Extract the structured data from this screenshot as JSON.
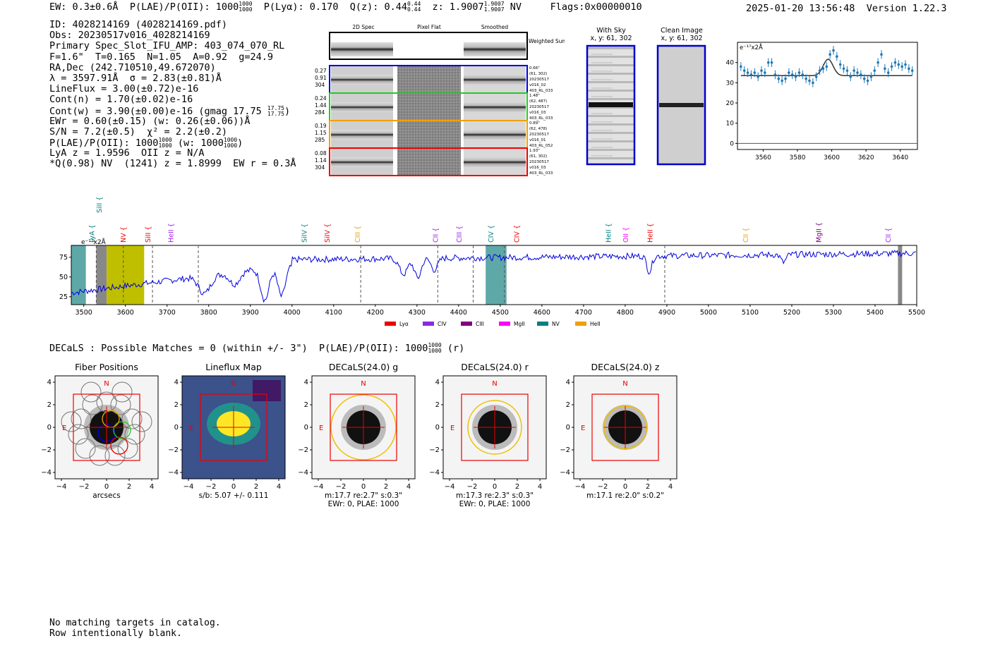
{
  "header": {
    "ew": "EW: 0.3±0.6Å",
    "plae_label": "P(LAE)/P(OII): 1000",
    "plae_sup": "1000",
    "plae_sub": "1000",
    "plya": "P(Lyα): 0.170",
    "qz_label": "Q(z): 0.44",
    "qz_sup": "0.44",
    "qz_sub": "0.44",
    "z_label": "z: 1.9007",
    "z_sup": "1.9007",
    "z_sub": "1.9007",
    "z_line": "NV",
    "flags": "Flags:0x00000010",
    "datetime": "2025-01-20 13:56:48",
    "version": "Version 1.22.3"
  },
  "info": {
    "id": "ID: 4028214169 (4028214169.pdf)",
    "obs": "Obs: 20230517v016_4028214169",
    "primary": "Primary Spec_Slot_IFU_AMP: 403_074_070_RL",
    "params": "F=1.6\"  T=0.165  N=1.05  A=0.92  g=24.9",
    "radec": "RA,Dec (242.710510,49.672070)",
    "lambda": "λ = 3597.91Å  σ = 2.83(±0.81)Å",
    "lineflux": "LineFlux = 3.00(±0.72)e-16",
    "contn": "Cont(n) = 1.70(±0.02)e-16",
    "contw": "Cont(w) = 3.90(±0.00)e-16 (gmag 17.75",
    "contw_sup": "17.75",
    "contw_sub": "17.75",
    "ewr": "EWr = 0.60(±0.15) (w: 0.26(±0.06))Å",
    "sn": "S/N = 7.2(±0.5)  χ² = 2.2(±0.2)",
    "plae": "P(LAE)/P(OII): 1000",
    "plae_sup": "1000",
    "plae_sub": "1000",
    "plae_w": "(w: 1000",
    "plae_w_sup": "1000",
    "plae_w_sub": "1000",
    "lya": "LyA z = 1.9596  OII z = N/A",
    "q": "*Q(0.98) NV  (1241) z = 1.8999  EW r = 0.3Å"
  },
  "cutouts": {
    "col_2d": "2D Spec",
    "col_flat": "Pixel Flat",
    "col_smooth": "Smoothed",
    "weighted": "Weighted Sum",
    "rows": [
      {
        "w1": "0.27",
        "w2": "0.91",
        "w3": "304",
        "info1": "0.66\"",
        "info2": "(61, 302)",
        "info3": "20230517",
        "info4": "v016_02",
        "info5": "403_RL_033",
        "color": "#0000dd"
      },
      {
        "w1": "0.24",
        "w2": "1.44",
        "w3": "284",
        "info1": "1.48\"",
        "info2": "(62, 487)",
        "info3": "20230517",
        "info4": "v016_03",
        "info5": "403_RL_033",
        "color": "#22cc22"
      },
      {
        "w1": "0.19",
        "w2": "1.15",
        "w3": "285",
        "info1": "0.89\"",
        "info2": "(62, 478)",
        "info3": "20230517",
        "info4": "v016_01",
        "info5": "403_RL_052",
        "color": "#f0a000"
      },
      {
        "w1": "0.08",
        "w2": "1.14",
        "w3": "304",
        "info1": "1.93\"",
        "info2": "(61, 302)",
        "info3": "20230517",
        "info4": "v016_03",
        "info5": "403_RL_033",
        "color": "#ee0000"
      }
    ],
    "with_sky": "With Sky",
    "with_sky_xy": "x, y: 61, 302",
    "clean": "Clean Image",
    "clean_xy": "x, y: 61, 302"
  },
  "chart_data": [
    {
      "type": "scatter",
      "title": "",
      "ylabel_text": "e⁻¹⁷x2Å",
      "xlim": [
        3545,
        3650
      ],
      "ylim": [
        -3,
        50
      ],
      "xticks": [
        3560,
        3580,
        3600,
        3620,
        3640
      ],
      "yticks": [
        0,
        10,
        20,
        30,
        40
      ],
      "x": [
        3547,
        3549,
        3551,
        3553,
        3555,
        3557,
        3559,
        3561,
        3563,
        3565,
        3567,
        3569,
        3571,
        3573,
        3575,
        3577,
        3579,
        3581,
        3583,
        3585,
        3587,
        3589,
        3591,
        3593,
        3595,
        3597,
        3599,
        3601,
        3603,
        3605,
        3607,
        3609,
        3611,
        3613,
        3615,
        3617,
        3619,
        3621,
        3623,
        3625,
        3627,
        3629,
        3631,
        3633,
        3635,
        3637,
        3639,
        3641,
        3643,
        3645,
        3647
      ],
      "y": [
        38,
        36,
        35,
        34,
        35,
        33,
        36,
        35,
        40,
        40,
        34,
        32,
        31,
        32,
        35,
        34,
        33,
        35,
        34,
        32,
        31,
        30,
        33,
        36,
        37,
        38,
        44,
        46,
        43,
        39,
        37,
        36,
        33,
        36,
        35,
        34,
        32,
        31,
        33,
        36,
        40,
        44,
        37,
        35,
        38,
        40,
        39,
        38,
        39,
        37,
        36
      ],
      "fit": {
        "amplitude": 8.2,
        "center": 3597.9,
        "sigma": 2.83,
        "baseline": 33.5
      }
    },
    {
      "type": "line",
      "ylabel_text": "e⁻¹⁷x2Å",
      "xlim": [
        3470,
        5500
      ],
      "ylim": [
        15,
        90
      ],
      "xticks": [
        3500,
        3600,
        3700,
        3800,
        3900,
        4000,
        4100,
        4200,
        4300,
        4400,
        4500,
        4600,
        4700,
        4800,
        4900,
        5000,
        5100,
        5200,
        5300,
        5400,
        5500
      ],
      "yticks": [
        25,
        50,
        75
      ],
      "lines": [
        {
          "name": "SiII",
          "wave": 3538,
          "color": "#008080"
        },
        {
          "name": "LyA",
          "wave": 3520,
          "color": "#008080"
        },
        {
          "name": "NV",
          "wave": 3595,
          "color": "#ee0000"
        },
        {
          "name": "SiII",
          "wave": 3655,
          "color": "#ee0000"
        },
        {
          "name": "HeII",
          "wave": 3710,
          "color": "#a020f0"
        },
        {
          "name": "SiIV",
          "wave": 4030,
          "color": "#008080"
        },
        {
          "name": "SiIV",
          "wave": 4085,
          "color": "#ee0000"
        },
        {
          "name": "CIII",
          "wave": 4158,
          "color": "#f0a000"
        },
        {
          "name": "CII",
          "wave": 4345,
          "color": "#a020f0"
        },
        {
          "name": "CIII",
          "wave": 4402,
          "color": "#a020f0"
        },
        {
          "name": "CIV",
          "wave": 4478,
          "color": "#008080"
        },
        {
          "name": "CIV",
          "wave": 4540,
          "color": "#ee0000"
        },
        {
          "name": "HeII",
          "wave": 4760,
          "color": "#008080"
        },
        {
          "name": "OII",
          "wave": 4802,
          "color": "#ff00ff"
        },
        {
          "name": "HeII",
          "wave": 4860,
          "color": "#ee0000"
        },
        {
          "name": "CII",
          "wave": 5090,
          "color": "#f0a000"
        },
        {
          "name": "MgII",
          "wave": 5265,
          "color": "#800080"
        },
        {
          "name": "CII",
          "wave": 5432,
          "color": "#a020f0"
        }
      ],
      "dashed_lines": [
        3530,
        3595,
        3665,
        3775,
        4165,
        4350,
        4435,
        4510,
        4895
      ],
      "legend": [
        {
          "name": "Lyα",
          "color": "#ee0000"
        },
        {
          "name": "CIV",
          "color": "#8a2be2"
        },
        {
          "name": "CIII",
          "color": "#800080"
        },
        {
          "name": "MgII",
          "color": "#ff00ff"
        },
        {
          "name": "NV",
          "color": "#008080"
        },
        {
          "name": "HeII",
          "color": "#f0a000"
        }
      ]
    }
  ],
  "decals": {
    "line": "DECaLS : Possible Matches = 0 (within +/- 3\")  P(LAE)/P(OII): 1000",
    "sup": "1000",
    "sub": "1000",
    "band": "(r)",
    "panels": [
      {
        "title": "Fiber Positions",
        "xlabel": "arcsecs",
        "sub1": "",
        "sub2": ""
      },
      {
        "title": "Lineflux Map",
        "xlabel": "s/b: 5.07 +/- 0.111",
        "sub1": "",
        "sub2": ""
      },
      {
        "title": "DECaLS(24.0) g",
        "xlabel": "m:17.7  re:2.7\"  s:0.3\"",
        "sub2": "EWr: 0, PLAE: 1000"
      },
      {
        "title": "DECaLS(24.0) r",
        "xlabel": "m:17.3  re:2.3\"  s:0.3\"",
        "sub2": "EWr: 0, PLAE: 1000"
      },
      {
        "title": "DECaLS(24.0) z",
        "xlabel": "m:17.1  re:2.0\"  s:0.2\"",
        "sub2": ""
      }
    ],
    "north": "N",
    "east": "E",
    "ticks": [
      "−4",
      "−2",
      "0",
      "2",
      "4"
    ]
  },
  "footer": {
    "line1": "No matching targets in catalog.",
    "line2": "Row intentionally blank."
  }
}
